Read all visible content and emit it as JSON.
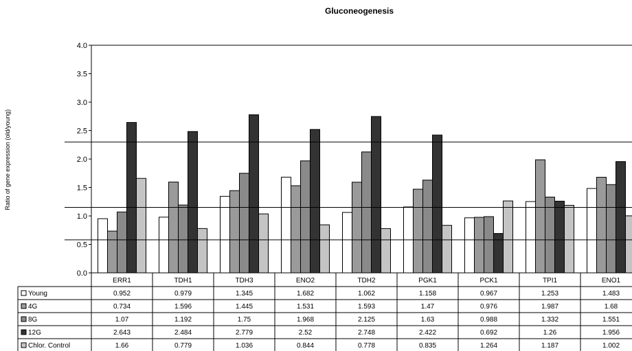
{
  "chart_data": {
    "type": "bar",
    "title": "Gluconeogenesis",
    "ylabel": "Ratio of gene expression (old/young)",
    "ylim": [
      0,
      4.0
    ],
    "yticks": [
      "0.0",
      "0.5",
      "1.0",
      "1.5",
      "2.0",
      "2.5",
      "3.0",
      "3.5",
      "4.0"
    ],
    "categories": [
      "ERR1",
      "TDH1",
      "TDH3",
      "ENO2",
      "TDH2",
      "PGK1",
      "PCK1",
      "TPI1",
      "ENO1"
    ],
    "series": [
      {
        "name": "Young",
        "color": "#ffffff",
        "values": [
          0.952,
          0.979,
          1.345,
          1.682,
          1.062,
          1.158,
          0.967,
          1.253,
          1.483
        ],
        "labels": [
          "0.952",
          "0.979",
          "1.345",
          "1.682",
          "1.062",
          "1.158",
          "0.967",
          "1.253",
          "1.483"
        ]
      },
      {
        "name": "4G",
        "color": "#9a9a9a",
        "values": [
          0.734,
          1.596,
          1.445,
          1.531,
          1.593,
          1.47,
          0.976,
          1.987,
          1.68
        ],
        "labels": [
          "0.734",
          "1.596",
          "1.445",
          "1.531",
          "1.593",
          "1.47",
          "0.976",
          "1.987",
          "1.68"
        ]
      },
      {
        "name": "8G",
        "color": "#8a8a8a",
        "values": [
          1.07,
          1.192,
          1.75,
          1.968,
          2.125,
          1.63,
          0.988,
          1.332,
          1.551
        ],
        "labels": [
          "1.07",
          "1.192",
          "1.75",
          "1.968",
          "2.125",
          "1.63",
          "0.988",
          "1.332",
          "1.551"
        ]
      },
      {
        "name": "12G",
        "color": "#333333",
        "values": [
          2.643,
          2.484,
          2.779,
          2.52,
          2.748,
          2.422,
          0.692,
          1.26,
          1.956
        ],
        "labels": [
          "2.643",
          "2.484",
          "2.779",
          "2.52",
          "2.748",
          "2.422",
          "0.692",
          "1.26",
          "1.956"
        ]
      },
      {
        "name": "Chlor. Control",
        "color": "#c4c4c4",
        "values": [
          1.66,
          0.779,
          1.036,
          0.844,
          0.778,
          0.835,
          1.264,
          1.187,
          1.002
        ],
        "labels": [
          "1.66",
          "0.779",
          "1.036",
          "0.844",
          "0.778",
          "0.835",
          "1.264",
          "1.187",
          "1.002"
        ]
      }
    ],
    "reference_lines": [
      0.58,
      1.15,
      2.3
    ],
    "grid": false,
    "legend": "data-table"
  }
}
